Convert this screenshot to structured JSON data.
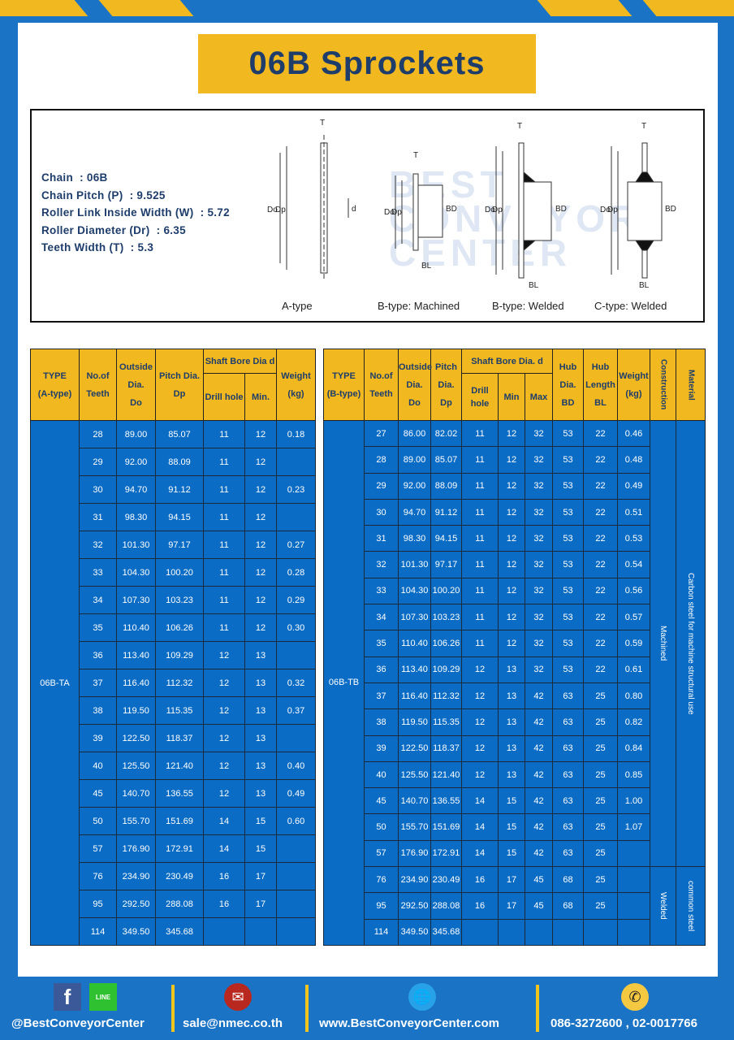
{
  "title": "06B Sprockets",
  "specs": [
    {
      "label": "Chain",
      "value": "06B"
    },
    {
      "label": "Chain Pitch (P)",
      "value": "9.525"
    },
    {
      "label": "Roller Link Inside Width (W)",
      "value": "5.72"
    },
    {
      "label": "Roller Diameter (Dr)",
      "value": "6.35"
    },
    {
      "label": "Teeth Width (T)",
      "value": "5.3"
    }
  ],
  "diagram": {
    "captions": [
      "A-type",
      "B-type: Machined",
      "B-type: Welded",
      "C-type: Welded"
    ],
    "labels": {
      "t": "T",
      "do": "Do",
      "dp": "Dp",
      "d": "d",
      "bd": "BD",
      "bl": "BL"
    },
    "watermark": [
      "BEST",
      "CONVEYOR",
      "CENTER"
    ]
  },
  "table_a": {
    "headers": {
      "type": [
        "TYPE",
        "(A-type)"
      ],
      "teeth": [
        "No.of",
        "Teeth"
      ],
      "do": [
        "Outside",
        "Dia.",
        "Do"
      ],
      "dp": [
        "Pitch Dia.",
        "Dp"
      ],
      "bore": "Shaft Bore Dia d",
      "drill": "Drill hole",
      "min": "Min.",
      "weight": [
        "Weight",
        "(kg)"
      ]
    },
    "type_value": "06B-TA",
    "rows": [
      [
        "28",
        "89.00",
        "85.07",
        "11",
        "12",
        "0.18"
      ],
      [
        "29",
        "92.00",
        "88.09",
        "11",
        "12",
        ""
      ],
      [
        "30",
        "94.70",
        "91.12",
        "11",
        "12",
        "0.23"
      ],
      [
        "31",
        "98.30",
        "94.15",
        "11",
        "12",
        ""
      ],
      [
        "32",
        "101.30",
        "97.17",
        "11",
        "12",
        "0.27"
      ],
      [
        "33",
        "104.30",
        "100.20",
        "11",
        "12",
        "0.28"
      ],
      [
        "34",
        "107.30",
        "103.23",
        "11",
        "12",
        "0.29"
      ],
      [
        "35",
        "110.40",
        "106.26",
        "11",
        "12",
        "0.30"
      ],
      [
        "36",
        "113.40",
        "109.29",
        "12",
        "13",
        ""
      ],
      [
        "37",
        "116.40",
        "112.32",
        "12",
        "13",
        "0.32"
      ],
      [
        "38",
        "119.50",
        "115.35",
        "12",
        "13",
        "0.37"
      ],
      [
        "39",
        "122.50",
        "118.37",
        "12",
        "13",
        ""
      ],
      [
        "40",
        "125.50",
        "121.40",
        "12",
        "13",
        "0.40"
      ],
      [
        "45",
        "140.70",
        "136.55",
        "12",
        "13",
        "0.49"
      ],
      [
        "50",
        "155.70",
        "151.69",
        "14",
        "15",
        "0.60"
      ],
      [
        "57",
        "176.90",
        "172.91",
        "14",
        "15",
        ""
      ],
      [
        "76",
        "234.90",
        "230.49",
        "16",
        "17",
        ""
      ],
      [
        "95",
        "292.50",
        "288.08",
        "16",
        "17",
        ""
      ],
      [
        "114",
        "349.50",
        "345.68",
        "",
        "",
        ""
      ]
    ]
  },
  "table_b": {
    "headers": {
      "type": [
        "TYPE",
        "(B-type)"
      ],
      "teeth": [
        "No.of",
        "Teeth"
      ],
      "do": [
        "Outside",
        "Dia.",
        "Do"
      ],
      "dp": [
        "Pitch",
        "Dia.",
        "Dp"
      ],
      "bore": "Shaft Bore Dia. d",
      "drill": "Drill hole",
      "min": "Min",
      "max": "Max",
      "bd": [
        "Hub",
        "Dia.",
        "BD"
      ],
      "bl": [
        "Hub",
        "Length",
        "BL"
      ],
      "weight": [
        "Weight",
        "(kg)"
      ],
      "construction": "Construction",
      "material": "Material"
    },
    "type_value": "06B-TB",
    "construction": [
      "Machined",
      "Welded"
    ],
    "material": [
      "Carbon steel for machine structural use",
      "common steel"
    ],
    "rows": [
      [
        "27",
        "86.00",
        "82.02",
        "11",
        "12",
        "32",
        "53",
        "22",
        "0.46"
      ],
      [
        "28",
        "89.00",
        "85.07",
        "11",
        "12",
        "32",
        "53",
        "22",
        "0.48"
      ],
      [
        "29",
        "92.00",
        "88.09",
        "11",
        "12",
        "32",
        "53",
        "22",
        "0.49"
      ],
      [
        "30",
        "94.70",
        "91.12",
        "11",
        "12",
        "32",
        "53",
        "22",
        "0.51"
      ],
      [
        "31",
        "98.30",
        "94.15",
        "11",
        "12",
        "32",
        "53",
        "22",
        "0.53"
      ],
      [
        "32",
        "101.30",
        "97.17",
        "11",
        "12",
        "32",
        "53",
        "22",
        "0.54"
      ],
      [
        "33",
        "104.30",
        "100.20",
        "11",
        "12",
        "32",
        "53",
        "22",
        "0.56"
      ],
      [
        "34",
        "107.30",
        "103.23",
        "11",
        "12",
        "32",
        "53",
        "22",
        "0.57"
      ],
      [
        "35",
        "110.40",
        "106.26",
        "11",
        "12",
        "32",
        "53",
        "22",
        "0.59"
      ],
      [
        "36",
        "113.40",
        "109.29",
        "12",
        "13",
        "32",
        "53",
        "22",
        "0.61"
      ],
      [
        "37",
        "116.40",
        "112.32",
        "12",
        "13",
        "42",
        "63",
        "25",
        "0.80"
      ],
      [
        "38",
        "119.50",
        "115.35",
        "12",
        "13",
        "42",
        "63",
        "25",
        "0.82"
      ],
      [
        "39",
        "122.50",
        "118.37",
        "12",
        "13",
        "42",
        "63",
        "25",
        "0.84"
      ],
      [
        "40",
        "125.50",
        "121.40",
        "12",
        "13",
        "42",
        "63",
        "25",
        "0.85"
      ],
      [
        "45",
        "140.70",
        "136.55",
        "14",
        "15",
        "42",
        "63",
        "25",
        "1.00"
      ],
      [
        "50",
        "155.70",
        "151.69",
        "14",
        "15",
        "42",
        "63",
        "25",
        "1.07"
      ],
      [
        "57",
        "176.90",
        "172.91",
        "14",
        "15",
        "42",
        "63",
        "25",
        ""
      ],
      [
        "76",
        "234.90",
        "230.49",
        "16",
        "17",
        "45",
        "68",
        "25",
        ""
      ],
      [
        "95",
        "292.50",
        "288.08",
        "16",
        "17",
        "45",
        "68",
        "25",
        ""
      ],
      [
        "114",
        "349.50",
        "345.68",
        "",
        "",
        "",
        "",
        "",
        ""
      ]
    ]
  },
  "footer": {
    "social": "@BestConveyorCenter",
    "line_badge": "LINE",
    "email": "sale@nmec.co.th",
    "website": "www.BestConveyorCenter.com",
    "phone": "086-3272600 , 02-0017766"
  },
  "colors": {
    "blue": "#1a73c4",
    "yellow": "#f2b81f",
    "navy": "#1e3d6b",
    "cell": "#0a6cc5"
  }
}
